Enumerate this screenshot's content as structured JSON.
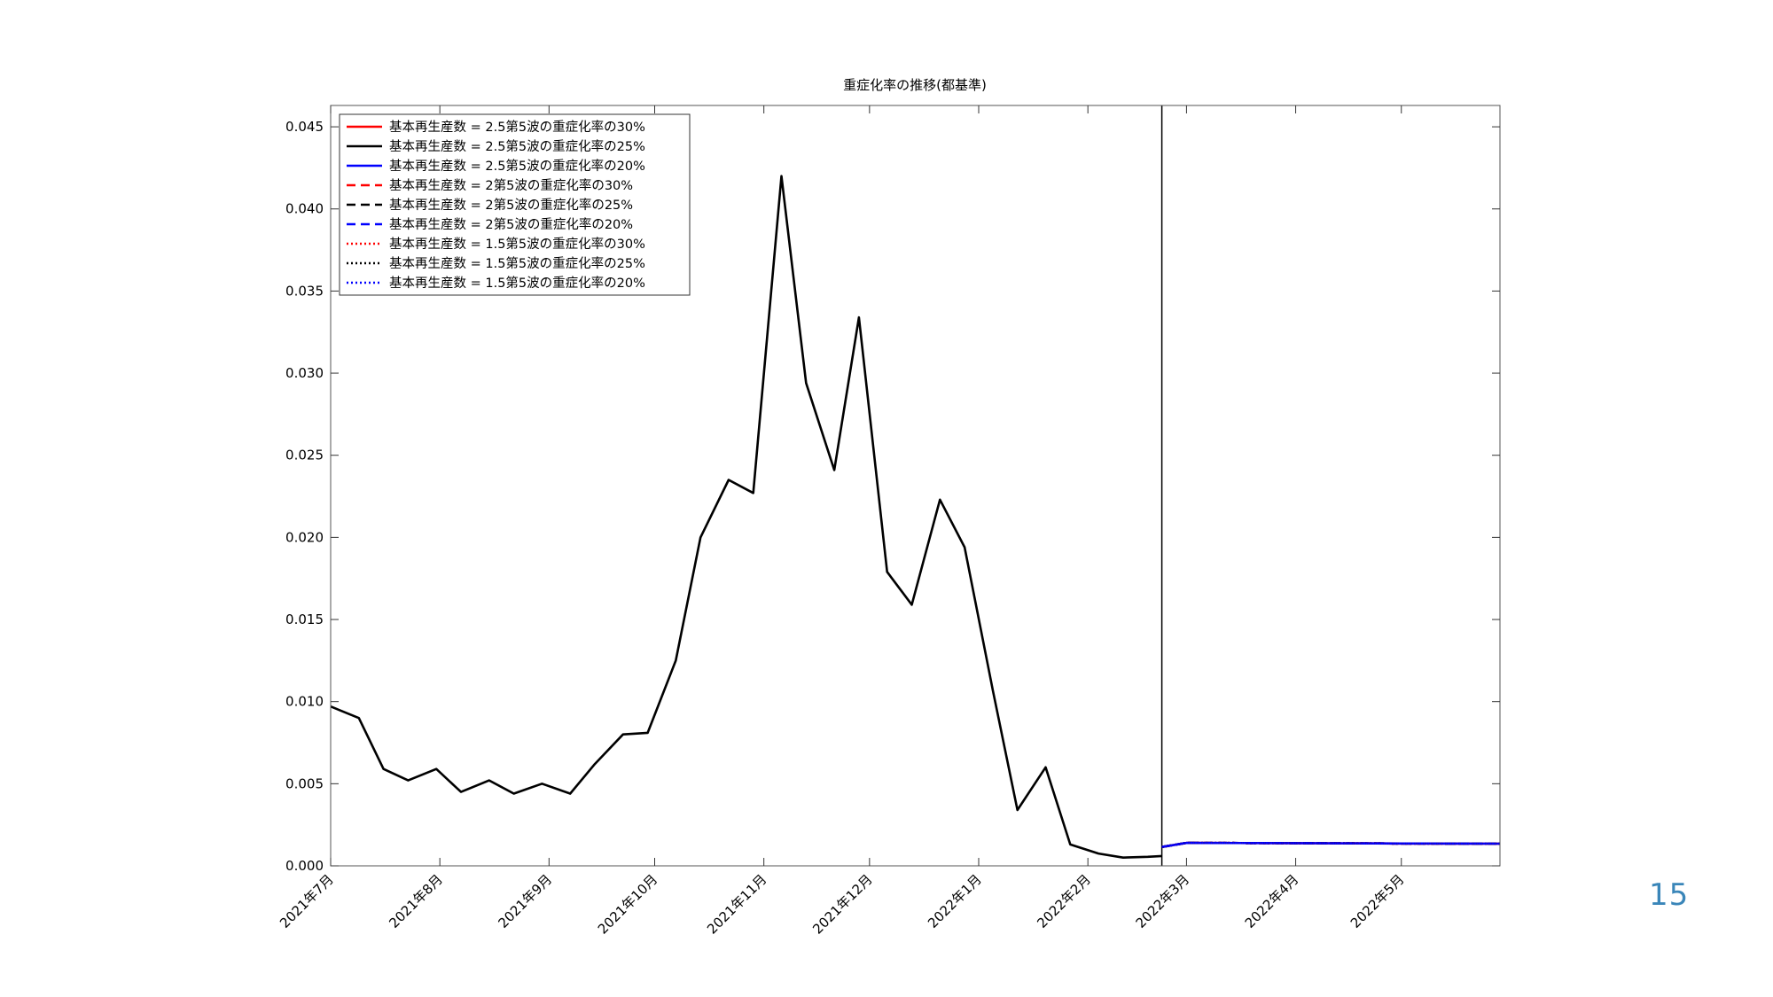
{
  "page": {
    "number": "15"
  },
  "chart_data": {
    "type": "line",
    "title": "重症化率の推移(都基準)",
    "xlabel": "",
    "ylabel": "",
    "x_axis_type": "date",
    "xlim": [
      "2021-07-01",
      "2022-05-29"
    ],
    "ylim": [
      0,
      0.0463
    ],
    "y_ticks": [
      "0.000",
      "0.005",
      "0.010",
      "0.015",
      "0.020",
      "0.025",
      "0.030",
      "0.035",
      "0.040",
      "0.045"
    ],
    "x_ticks": [
      {
        "date": "2021-07-01",
        "label": "2021年7月"
      },
      {
        "date": "2021-08-01",
        "label": "2021年8月"
      },
      {
        "date": "2021-09-01",
        "label": "2021年9月"
      },
      {
        "date": "2021-10-01",
        "label": "2021年10月"
      },
      {
        "date": "2021-11-01",
        "label": "2021年11月"
      },
      {
        "date": "2021-12-01",
        "label": "2021年12月"
      },
      {
        "date": "2022-01-01",
        "label": "2022年1月"
      },
      {
        "date": "2022-02-01",
        "label": "2022年2月"
      },
      {
        "date": "2022-03-01",
        "label": "2022年3月"
      },
      {
        "date": "2022-04-01",
        "label": "2022年4月"
      },
      {
        "date": "2022-05-01",
        "label": "2022年5月"
      }
    ],
    "grid": false,
    "legend_position": "top-left",
    "vertical_line": {
      "date": "2022-02-22",
      "color": "#000000"
    },
    "series": [
      {
        "name": "基本再生産数 = 2.5第5波の重症化率の30%",
        "color": "#ff0000",
        "style": "solid",
        "x": [
          "2022-02-22",
          "2022-03-01",
          "2022-04-01",
          "2022-05-01",
          "2022-05-29"
        ],
        "y": [
          0.00115,
          0.0014,
          0.00138,
          0.00136,
          0.00135
        ]
      },
      {
        "name": "基本再生産数 = 2.5第5波の重症化率の25%",
        "color": "#000000",
        "style": "solid",
        "x": [
          "2021-07-01",
          "2021-07-09",
          "2021-07-16",
          "2021-07-23",
          "2021-07-31",
          "2021-08-07",
          "2021-08-15",
          "2021-08-22",
          "2021-08-30",
          "2021-09-07",
          "2021-09-14",
          "2021-09-22",
          "2021-09-29",
          "2021-10-07",
          "2021-10-14",
          "2021-10-22",
          "2021-10-29",
          "2021-11-06",
          "2021-11-13",
          "2021-11-21",
          "2021-11-28",
          "2021-12-06",
          "2021-12-13",
          "2021-12-21",
          "2021-12-28",
          "2022-01-05",
          "2022-01-12",
          "2022-01-20",
          "2022-01-27",
          "2022-02-04",
          "2022-02-11",
          "2022-02-18",
          "2022-02-22"
        ],
        "y": [
          0.0097,
          0.009,
          0.0059,
          0.0052,
          0.0059,
          0.0045,
          0.0052,
          0.0044,
          0.005,
          0.0044,
          0.0062,
          0.008,
          0.0081,
          0.0125,
          0.02,
          0.0235,
          0.0227,
          0.042,
          0.0294,
          0.0241,
          0.0334,
          0.0179,
          0.0159,
          0.0223,
          0.0194,
          0.0107,
          0.0034,
          0.006,
          0.0013,
          0.00075,
          0.0005,
          0.00055,
          0.0006
        ]
      },
      {
        "name": "基本再生産数 = 2.5第5波の重症化率の20%",
        "color": "#0000ff",
        "style": "solid",
        "x": [
          "2022-02-22",
          "2022-03-01",
          "2022-04-01",
          "2022-05-01",
          "2022-05-29"
        ],
        "y": [
          0.00115,
          0.0014,
          0.00138,
          0.00136,
          0.00135
        ]
      },
      {
        "name": "基本再生産数 = 2第5波の重症化率の30%",
        "color": "#ff0000",
        "style": "dashed",
        "x": [
          "2022-02-22",
          "2022-03-01",
          "2022-04-01",
          "2022-05-01",
          "2022-05-29"
        ],
        "y": [
          0.00115,
          0.0014,
          0.00138,
          0.00136,
          0.00135
        ]
      },
      {
        "name": "基本再生産数 = 2第5波の重症化率の25%",
        "color": "#000000",
        "style": "dashed",
        "x": [
          "2022-02-22",
          "2022-03-01",
          "2022-04-01",
          "2022-05-01",
          "2022-05-29"
        ],
        "y": [
          0.00115,
          0.0014,
          0.00138,
          0.00136,
          0.00135
        ]
      },
      {
        "name": "基本再生産数 = 2第5波の重症化率の20%",
        "color": "#0000ff",
        "style": "dashed",
        "x": [
          "2022-02-22",
          "2022-03-01",
          "2022-04-01",
          "2022-05-01",
          "2022-05-29"
        ],
        "y": [
          0.00115,
          0.0014,
          0.00138,
          0.00136,
          0.00135
        ]
      },
      {
        "name": "基本再生産数 = 1.5第5波の重症化率の30%",
        "color": "#ff0000",
        "style": "dotted",
        "x": [
          "2022-02-22",
          "2022-03-01",
          "2022-04-01",
          "2022-05-01",
          "2022-05-29"
        ],
        "y": [
          0.00115,
          0.0014,
          0.00138,
          0.00136,
          0.00135
        ]
      },
      {
        "name": "基本再生産数 = 1.5第5波の重症化率の25%",
        "color": "#000000",
        "style": "dotted",
        "x": [
          "2022-02-22",
          "2022-03-01",
          "2022-04-01",
          "2022-05-01",
          "2022-05-29"
        ],
        "y": [
          0.00115,
          0.0014,
          0.00138,
          0.00136,
          0.00135
        ]
      },
      {
        "name": "基本再生産数 = 1.5第5波の重症化率の20%",
        "color": "#0000ff",
        "style": "dotted",
        "x": [
          "2022-02-22",
          "2022-03-01",
          "2022-04-01",
          "2022-05-01",
          "2022-05-29"
        ],
        "y": [
          0.00115,
          0.0014,
          0.00138,
          0.00136,
          0.00135
        ]
      }
    ]
  }
}
